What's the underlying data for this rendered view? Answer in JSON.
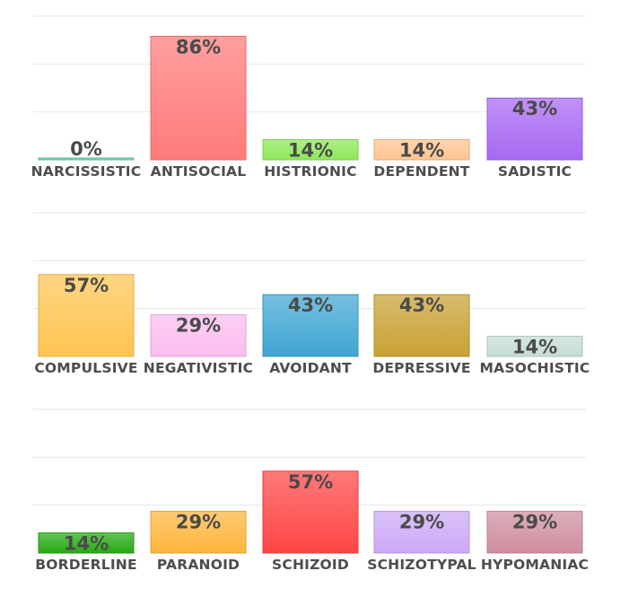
{
  "chart_data": [
    {
      "type": "bar",
      "categories": [
        "NARCISSISTIC",
        "ANTISOCIAL",
        "HISTRIONIC",
        "DEPENDENT",
        "SADISTIC"
      ],
      "values": [
        0,
        86,
        14,
        14,
        43
      ],
      "value_labels": [
        "0%",
        "86%",
        "14%",
        "14%",
        "43%"
      ],
      "colors": [
        "#5fd3b3",
        "#ff7a7a",
        "#8ee85a",
        "#ffc48f",
        "#a868f2"
      ],
      "ylim": [
        0,
        100
      ],
      "grid": true
    },
    {
      "type": "bar",
      "categories": [
        "COMPULSIVE",
        "NEGATIVISTIC",
        "AVOIDANT",
        "DEPRESSIVE",
        "MASOCHISTIC"
      ],
      "values": [
        57,
        29,
        43,
        43,
        14
      ],
      "value_labels": [
        "57%",
        "29%",
        "43%",
        "43%",
        "14%"
      ],
      "colors": [
        "#fdc451",
        "#fbbdf0",
        "#40a6d3",
        "#c9a234",
        "#c6ddd3"
      ],
      "ylim": [
        0,
        100
      ],
      "grid": true
    },
    {
      "type": "bar",
      "categories": [
        "BORDERLINE",
        "PARANOID",
        "SCHIZOID",
        "SCHIZOTYPAL",
        "HYPOMANIAC"
      ],
      "values": [
        14,
        29,
        57,
        29,
        29
      ],
      "value_labels": [
        "14%",
        "29%",
        "57%",
        "29%",
        "29%"
      ],
      "colors": [
        "#25aa12",
        "#fdb63c",
        "#ff4545",
        "#cca9f6",
        "#cf8f9f"
      ],
      "ylim": [
        0,
        100
      ],
      "grid": true
    }
  ]
}
